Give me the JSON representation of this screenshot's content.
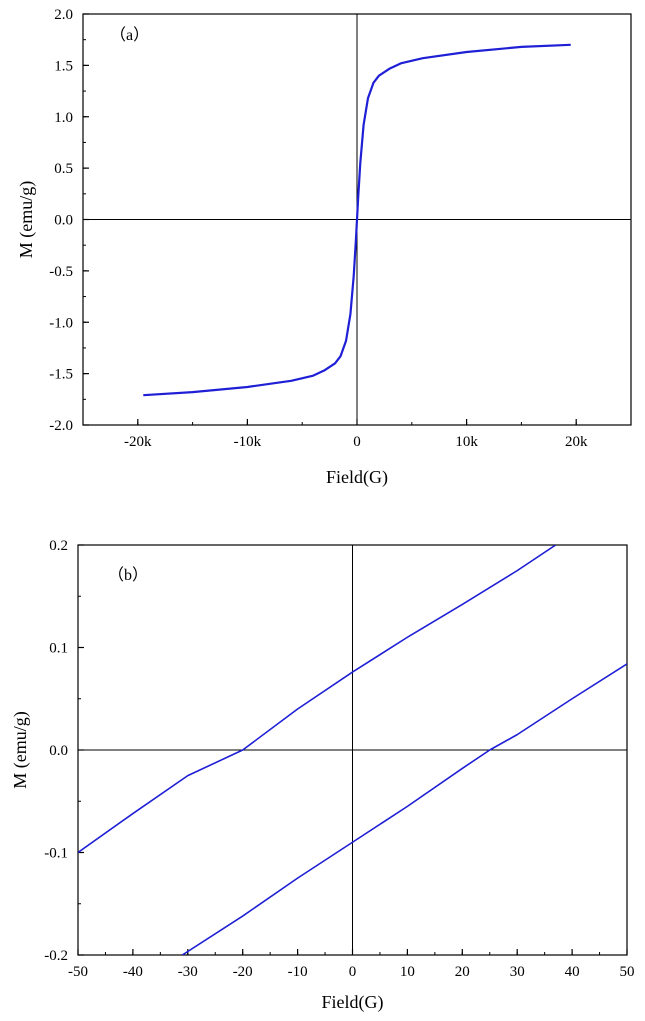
{
  "colors": {
    "curve": "#1f1fd6",
    "axis": "#000000",
    "background": "#ffffff"
  },
  "chart_data": [
    {
      "type": "line",
      "panel_label": "（a）",
      "xlabel": "Field(G)",
      "ylabel": "M (emu/g)",
      "xlim": [
        -25000,
        25000
      ],
      "ylim": [
        -2.0,
        2.0
      ],
      "xticks": [
        -20000,
        -10000,
        0,
        10000,
        20000
      ],
      "xtick_labels": [
        "-20k",
        "-10k",
        "0",
        "10k",
        "20k"
      ],
      "yticks": [
        -2.0,
        -1.5,
        -1.0,
        -0.5,
        0.0,
        0.5,
        1.0,
        1.5,
        2.0
      ],
      "ytick_labels": [
        "-2.0",
        "-1.5",
        "-1.0",
        "-0.5",
        "0.0",
        "0.5",
        "1.0",
        "1.5",
        "2.0"
      ],
      "zero_lines": true,
      "grid": false,
      "series": [
        {
          "x": [
            -19500,
            -15000,
            -10000,
            -6000,
            -4000,
            -3000,
            -2000,
            -1500,
            -1000,
            -600,
            -300,
            -100,
            0,
            100,
            300,
            600,
            1000,
            1500,
            2000,
            3000,
            4000,
            6000,
            10000,
            15000,
            19500
          ],
          "y": [
            -1.71,
            -1.68,
            -1.63,
            -1.57,
            -1.52,
            -1.47,
            -1.4,
            -1.33,
            -1.18,
            -0.92,
            -0.55,
            -0.2,
            0.0,
            0.2,
            0.55,
            0.92,
            1.18,
            1.33,
            1.4,
            1.47,
            1.52,
            1.57,
            1.63,
            1.68,
            1.7
          ]
        }
      ]
    },
    {
      "type": "line",
      "panel_label": "（b）",
      "xlabel": "Field(G)",
      "ylabel": "M (emu/g)",
      "xlim": [
        -50,
        50
      ],
      "ylim": [
        -0.2,
        0.2
      ],
      "xticks": [
        -50,
        -40,
        -30,
        -20,
        -10,
        0,
        10,
        20,
        30,
        40,
        50
      ],
      "xtick_labels": [
        "-50",
        "-40",
        "-30",
        "-20",
        "-10",
        "0",
        "10",
        "20",
        "30",
        "40",
        "50"
      ],
      "yticks": [
        -0.2,
        -0.1,
        0.0,
        0.1,
        0.2
      ],
      "ytick_labels": [
        "-0.2",
        "-0.1",
        "0.0",
        "0.1",
        "0.2"
      ],
      "zero_lines": true,
      "grid": false,
      "series": [
        {
          "x": [
            -50,
            -40,
            -30,
            -20,
            -10,
            0,
            10,
            20,
            30,
            37
          ],
          "y": [
            -0.1,
            -0.062,
            -0.025,
            0.0,
            0.04,
            0.076,
            0.11,
            0.142,
            0.175,
            0.2
          ]
        },
        {
          "x": [
            -31,
            -20,
            -10,
            0,
            10,
            20,
            25,
            30,
            40,
            50
          ],
          "y": [
            -0.2,
            -0.162,
            -0.125,
            -0.09,
            -0.055,
            -0.018,
            0.0,
            0.015,
            0.05,
            0.084
          ]
        }
      ]
    }
  ]
}
